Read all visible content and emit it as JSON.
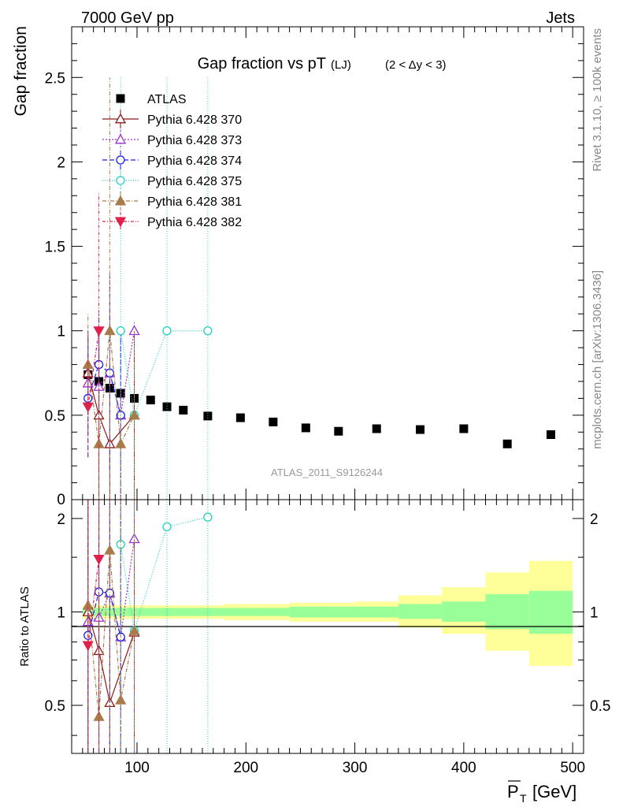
{
  "header": {
    "left": "7000 GeV pp",
    "right": "Jets"
  },
  "side_labels": {
    "rivet": "Rivet 3.1.10, ≥ 100k events",
    "mcplots": "mcplots.cern.ch [arXiv:1306.3436]"
  },
  "colors": {
    "atlas": "#000000",
    "p370": "#8b1a1a",
    "p373": "#9a32cd",
    "p374": "#1e1ee6",
    "p375": "#20d0c0",
    "p381": "#a87b4a",
    "p382": "#e0204a",
    "band_inner": "#99ff99",
    "band_outer": "#ffff99"
  },
  "chart_data": [
    {
      "type": "scatter",
      "title": "Gap fraction vs pT",
      "title_sub": "(LJ)",
      "title_range": "(2 < Δy < 3)",
      "ylabel": "Gap fraction",
      "watermark": "ATLAS_2011_S9126244",
      "xlim": [
        40,
        510
      ],
      "ylim": [
        0,
        2.8
      ],
      "yticks": [
        0.5,
        1,
        1.5,
        2,
        2.5
      ],
      "yticklabels": [
        "0.5",
        "1",
        "1.5",
        "2",
        "2.5"
      ],
      "ybottom_label": "0",
      "series": [
        {
          "key": "atlas",
          "name": "ATLAS",
          "marker": "square",
          "x": [
            55,
            65,
            75,
            85,
            97.5,
            112.5,
            127.5,
            142.5,
            165,
            195,
            225,
            255,
            285,
            320,
            360,
            400,
            440,
            480
          ],
          "y": [
            0.74,
            0.7,
            0.66,
            0.63,
            0.6,
            0.59,
            0.55,
            0.53,
            0.495,
            0.485,
            0.46,
            0.425,
            0.405,
            0.42,
            0.415,
            0.42,
            0.33,
            0.385
          ]
        },
        {
          "key": "p370",
          "name": "Pythia 6.428 370",
          "marker": "tri-up-open",
          "dash": "",
          "x": [
            55,
            65,
            75,
            97.5
          ],
          "y": [
            0.75,
            0.5,
            0.33,
            0.5
          ],
          "err": [
            0.25,
            0.5,
            0.5,
            0.5
          ]
        },
        {
          "key": "p373",
          "name": "Pythia 6.428 373",
          "marker": "tri-up-open",
          "dash": "2,2",
          "x": [
            55,
            65,
            75,
            85,
            97.5
          ],
          "y": [
            0.69,
            0.67,
            0.75,
            0.5,
            1.0
          ],
          "err": [
            0.3,
            0.3,
            0.6,
            0.5,
            0.05
          ]
        },
        {
          "key": "p374",
          "name": "Pythia 6.428 374",
          "marker": "circle-open",
          "dash": "6,3",
          "x": [
            55,
            65,
            75,
            85
          ],
          "y": [
            0.6,
            0.8,
            0.75,
            0.5
          ],
          "err": [
            0.35,
            0.3,
            0.57,
            0.5
          ]
        },
        {
          "key": "p375",
          "name": "Pythia 6.428 375",
          "marker": "circle-open",
          "dash": "1,2",
          "x": [
            85,
            97.5,
            127.5,
            165
          ],
          "y": [
            1.0,
            0.5,
            1.0,
            1.0
          ],
          "err": [
            1.5,
            0.5,
            1.5,
            1.5
          ]
        },
        {
          "key": "p381",
          "name": "Pythia 6.428 381",
          "marker": "tri-up-filled",
          "dash": "5,2,1,2",
          "x": [
            55,
            65,
            75,
            85,
            97.5
          ],
          "y": [
            0.8,
            0.33,
            1.0,
            0.33,
            0.5
          ],
          "err": [
            0.3,
            0.33,
            1.5,
            0.33,
            0.5
          ]
        },
        {
          "key": "p382",
          "name": "Pythia 6.428 382",
          "marker": "tri-down-filled",
          "dash": "4,2,1,2",
          "x": [
            55,
            65
          ],
          "y": [
            0.55,
            1.0
          ],
          "err": [
            0.3,
            0.82
          ]
        }
      ]
    },
    {
      "type": "scatter",
      "title": "",
      "xlabel": "P_T [GeV]",
      "ylabel": "Ratio to ATLAS",
      "xlim": [
        40,
        510
      ],
      "ylim": [
        0.35,
        2.3
      ],
      "log_y": true,
      "xticks": [
        100,
        200,
        300,
        400,
        500
      ],
      "xticklabels": [
        "100",
        "200",
        "300",
        "400",
        "500"
      ],
      "yticks": [
        0.5,
        1,
        2
      ],
      "yticklabels": [
        "0.5",
        "1",
        "2"
      ],
      "bands": {
        "edges": [
          50,
          60,
          70,
          80,
          90,
          105,
          120,
          135,
          150,
          180,
          210,
          240,
          270,
          300,
          340,
          380,
          420,
          460,
          500
        ],
        "inner_lo": [
          0.97,
          0.97,
          0.97,
          0.97,
          0.97,
          0.97,
          0.97,
          0.97,
          0.97,
          0.97,
          0.97,
          0.96,
          0.96,
          0.96,
          0.95,
          0.93,
          0.88,
          0.85
        ],
        "inner_hi": [
          1.03,
          1.03,
          1.03,
          1.03,
          1.03,
          1.03,
          1.03,
          1.03,
          1.03,
          1.03,
          1.03,
          1.04,
          1.04,
          1.04,
          1.06,
          1.08,
          1.14,
          1.17
        ],
        "outer_lo": [
          0.95,
          0.95,
          0.95,
          0.95,
          0.95,
          0.95,
          0.95,
          0.95,
          0.95,
          0.94,
          0.94,
          0.93,
          0.93,
          0.93,
          0.89,
          0.85,
          0.75,
          0.67
        ],
        "outer_hi": [
          1.05,
          1.05,
          1.05,
          1.05,
          1.05,
          1.05,
          1.05,
          1.05,
          1.05,
          1.06,
          1.06,
          1.07,
          1.07,
          1.08,
          1.13,
          1.2,
          1.34,
          1.46
        ]
      },
      "series": [
        {
          "key": "p370",
          "x": [
            55,
            65,
            75,
            97.5
          ],
          "y": [
            1.0,
            0.75,
            0.51,
            0.86
          ]
        },
        {
          "key": "p373",
          "x": [
            55,
            65,
            75,
            85,
            97.5
          ],
          "y": [
            0.93,
            0.96,
            1.15,
            0.83,
            1.72
          ]
        },
        {
          "key": "p374",
          "x": [
            55,
            65,
            75,
            85
          ],
          "y": [
            0.84,
            1.16,
            1.15,
            0.83
          ]
        },
        {
          "key": "p375",
          "x": [
            85,
            97.5,
            127.5,
            165
          ],
          "y": [
            1.65,
            0.87,
            1.88,
            2.02
          ]
        },
        {
          "key": "p381",
          "x": [
            55,
            65,
            75,
            85,
            97.5
          ],
          "y": [
            1.05,
            0.46,
            1.58,
            0.52,
            0.87
          ]
        },
        {
          "key": "p382",
          "x": [
            55,
            65
          ],
          "y": [
            0.78,
            1.48
          ]
        }
      ]
    }
  ]
}
